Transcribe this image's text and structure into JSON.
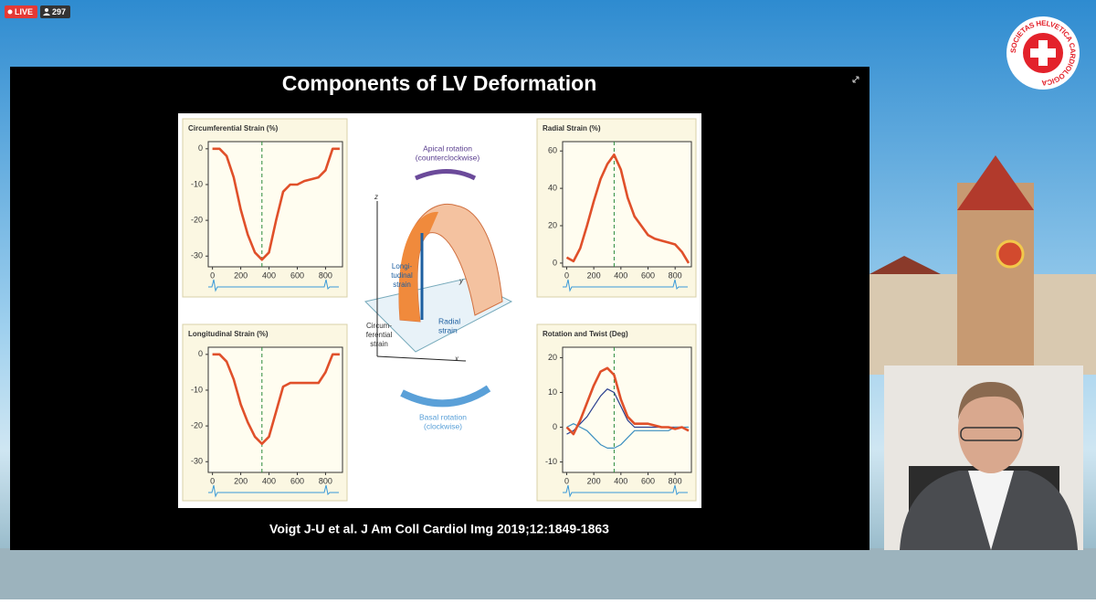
{
  "stream": {
    "live": "LIVE",
    "viewers": "297"
  },
  "logo": {
    "text": "SOCIETAS HELVETICA CARDIOLOGICA"
  },
  "slide": {
    "title": "Components of LV Deformation",
    "citation": "Voigt J-U et al. J Am Coll Cardiol Img 2019;12:1849-1863",
    "diagram": {
      "apical": [
        "Apical rotation",
        "(counterclockwise)"
      ],
      "basal": [
        "Basal rotation",
        "(clockwise)"
      ],
      "longitudinal": [
        "Longi-",
        "tudinal",
        "strain"
      ],
      "radial": [
        "Radial",
        "strain"
      ],
      "circumferential": [
        "Circum-",
        "ferential",
        "strain"
      ],
      "axes": [
        "z",
        "y",
        "x"
      ]
    }
  },
  "chart_data": [
    {
      "type": "line",
      "title": "Circumferential Strain (%)",
      "x": [
        0,
        50,
        100,
        150,
        200,
        250,
        300,
        350,
        400,
        450,
        500,
        550,
        600,
        650,
        700,
        750,
        800,
        850,
        900
      ],
      "series": [
        {
          "color": "#e0502a",
          "values": [
            0,
            0,
            -2,
            -8,
            -17,
            -24,
            -29,
            -31,
            -29,
            -20,
            -12,
            -10,
            -10,
            -9,
            -8.5,
            -8,
            -6,
            0,
            0
          ]
        }
      ],
      "vline_x": 350,
      "xlim": [
        -30,
        920
      ],
      "xticks": [
        0,
        200,
        400,
        600,
        800
      ],
      "ylim": [
        -33,
        2
      ],
      "yticks": [
        0,
        -10,
        -20,
        -30
      ]
    },
    {
      "type": "line",
      "title": "Radial Strain (%)",
      "x": [
        0,
        50,
        100,
        150,
        200,
        250,
        300,
        350,
        400,
        450,
        500,
        550,
        600,
        650,
        700,
        750,
        800,
        850,
        900
      ],
      "series": [
        {
          "color": "#e0502a",
          "values": [
            3,
            1,
            8,
            20,
            33,
            45,
            53,
            58,
            50,
            35,
            25,
            20,
            15,
            13,
            12,
            11,
            10,
            6,
            0
          ]
        }
      ],
      "vline_x": 350,
      "xlim": [
        -30,
        920
      ],
      "xticks": [
        0,
        200,
        400,
        600,
        800
      ],
      "ylim": [
        -2,
        65
      ],
      "yticks": [
        0,
        20,
        40,
        60
      ]
    },
    {
      "type": "line",
      "title": "Longitudinal Strain (%)",
      "x": [
        0,
        50,
        100,
        150,
        200,
        250,
        300,
        350,
        400,
        450,
        500,
        550,
        600,
        650,
        700,
        750,
        800,
        850,
        900
      ],
      "series": [
        {
          "color": "#e0502a",
          "values": [
            0,
            0,
            -2,
            -7,
            -14,
            -19,
            -23,
            -25,
            -23,
            -16,
            -9,
            -8,
            -8,
            -8,
            -8,
            -8,
            -5,
            0,
            0
          ]
        }
      ],
      "vline_x": 350,
      "xlim": [
        -30,
        920
      ],
      "xticks": [
        0,
        200,
        400,
        600,
        800
      ],
      "ylim": [
        -33,
        2
      ],
      "yticks": [
        0,
        -10,
        -20,
        -30
      ]
    },
    {
      "type": "line",
      "title": "Rotation and Twist (Deg)",
      "x": [
        0,
        50,
        100,
        150,
        200,
        250,
        300,
        350,
        400,
        450,
        500,
        550,
        600,
        650,
        700,
        750,
        800,
        850,
        900
      ],
      "series": [
        {
          "color": "#2a3f8f",
          "values": [
            -2,
            -1,
            1,
            3,
            6,
            9,
            11,
            10,
            6,
            2,
            0,
            0,
            0,
            0,
            0,
            0,
            0,
            0,
            -1
          ]
        },
        {
          "color": "#3c8fc0",
          "values": [
            0,
            1,
            0,
            -1,
            -3,
            -5,
            -6,
            -6,
            -5,
            -3,
            -1,
            -1,
            -1,
            -1,
            -1,
            -1,
            0,
            0,
            0
          ]
        },
        {
          "color": "#e0502a",
          "values": [
            0,
            -2,
            2,
            7,
            12,
            16,
            17,
            15,
            8,
            3,
            1,
            1,
            1,
            0.5,
            0,
            0,
            -0.5,
            0,
            -1
          ]
        }
      ],
      "vline_x": 350,
      "xlim": [
        -30,
        920
      ],
      "xticks": [
        0,
        200,
        400,
        600,
        800
      ],
      "ylim": [
        -13,
        23
      ],
      "yticks": [
        20,
        10,
        0,
        -10
      ]
    }
  ]
}
